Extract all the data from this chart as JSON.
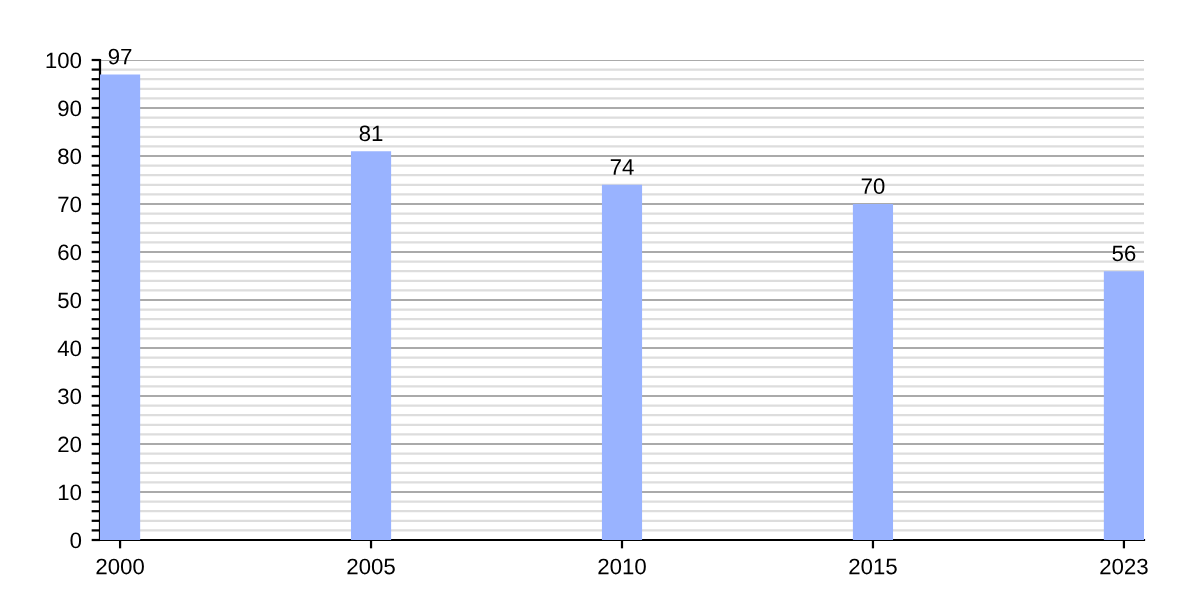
{
  "chart_data": {
    "type": "bar",
    "categories": [
      "2000",
      "2005",
      "2010",
      "2015",
      "2023"
    ],
    "values": [
      97,
      81,
      74,
      70,
      56
    ],
    "color": "#99b3ff",
    "data_labels": true,
    "grid": "y",
    "ylim": [
      0,
      100
    ],
    "yticks": [
      0,
      {
        "value": 2,
        "label": null
      },
      {
        "value": 4,
        "label": null
      },
      {
        "value": 6,
        "label": null
      },
      {
        "value": 8,
        "label": null
      },
      10,
      {
        "value": 12,
        "label": null
      },
      {
        "value": 14,
        "label": null
      },
      {
        "value": 16,
        "label": null
      },
      {
        "value": 18,
        "label": null
      },
      20,
      {
        "value": 22,
        "label": null
      },
      {
        "value": 24,
        "label": null
      },
      {
        "value": 26,
        "label": null
      },
      {
        "value": 28,
        "label": null
      },
      30,
      {
        "value": 32,
        "label": null
      },
      {
        "value": 34,
        "label": null
      },
      {
        "value": 36,
        "label": null
      },
      {
        "value": 38,
        "label": null
      },
      40,
      {
        "value": 42,
        "label": null
      },
      {
        "value": 44,
        "label": null
      },
      {
        "value": 46,
        "label": null
      },
      {
        "value": 48,
        "label": null
      },
      50,
      {
        "value": 52,
        "label": null
      },
      {
        "value": 54,
        "label": null
      },
      {
        "value": 56,
        "label": null
      },
      {
        "value": 58,
        "label": null
      },
      60,
      {
        "value": 62,
        "label": null
      },
      {
        "value": 64,
        "label": null
      },
      {
        "value": 66,
        "label": null
      },
      {
        "value": 68,
        "label": null
      },
      70,
      {
        "value": 72,
        "label": null
      },
      {
        "value": 74,
        "label": null
      },
      {
        "value": 76,
        "label": null
      },
      {
        "value": 78,
        "label": null
      },
      80,
      {
        "value": 82,
        "label": null
      },
      {
        "value": 84,
        "label": null
      },
      {
        "value": 86,
        "label": null
      },
      {
        "value": 88,
        "label": null
      },
      90,
      {
        "value": 92,
        "label": null
      },
      {
        "value": 94,
        "label": null
      },
      {
        "value": 96,
        "label": null
      },
      {
        "value": 98,
        "label": null
      },
      100
    ]
  }
}
